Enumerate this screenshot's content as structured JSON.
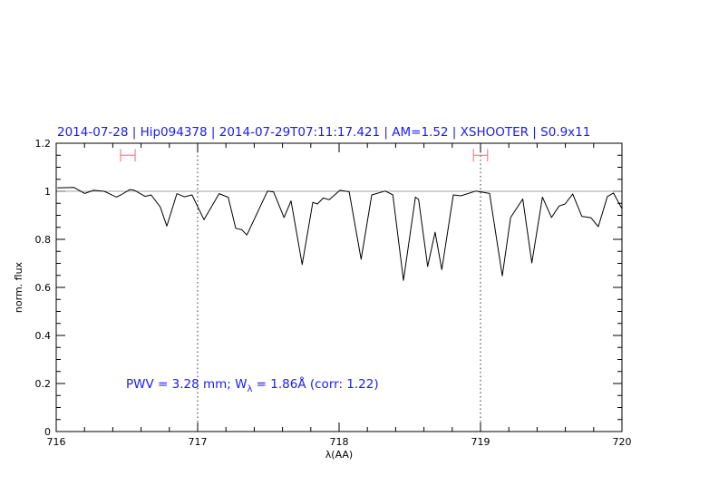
{
  "chart_data": {
    "type": "line",
    "title": "2014-07-28 | Hip094378 | 2014-07-29T07:11:17.421 | AM=1.52 | XSHOOTER | S0.9x11",
    "xlabel": "λ(AA)",
    "ylabel": "norm. flux",
    "xlim": [
      716,
      720
    ],
    "ylim": [
      0,
      1.2
    ],
    "xticks": [
      716,
      717,
      718,
      719,
      720
    ],
    "yticks": [
      0,
      0.2,
      0.4,
      0.6,
      0.8,
      1,
      1.2
    ],
    "ytick_labels": [
      "0",
      "0.2",
      "0.4",
      "0.6",
      "0.8",
      "1",
      "1.2"
    ],
    "grid": false,
    "reference_line_y": 1,
    "vertical_markers": [
      717,
      719
    ],
    "intervals": [
      {
        "x": [
          716.455,
          716.558
        ],
        "y": 1.15
      },
      {
        "x": [
          718.95,
          719.05
        ],
        "y": 1.15
      }
    ],
    "annotation": {
      "prefix": "PWV  =  3.28  mm;  W",
      "sub": "λ",
      "suffix": "  =  1.86Å  (corr:  1.22)"
    },
    "colors": {
      "title": "#1a1aff",
      "line": "#000000",
      "reference": "#e06666",
      "interval": "#f07070"
    },
    "series": [
      {
        "x": [
          716.008,
          716.126,
          716.201,
          716.265,
          716.34,
          716.425,
          716.457,
          716.521,
          716.553,
          716.628,
          716.671,
          716.735,
          716.782,
          716.853,
          716.906,
          716.96,
          717.045,
          717.152,
          717.216,
          717.269,
          717.312,
          717.348,
          717.494,
          717.537,
          717.611,
          717.66,
          717.739,
          717.814,
          717.846,
          717.889,
          717.931,
          718.006,
          718.071,
          718.156,
          718.231,
          718.327,
          718.38,
          718.455,
          718.54,
          718.562,
          718.626,
          718.679,
          718.726,
          718.808,
          718.861,
          718.968,
          719.064,
          719.154,
          719.213,
          719.299,
          719.363,
          719.438,
          719.502,
          719.556,
          719.598,
          719.652,
          719.716,
          719.78,
          719.833,
          719.897,
          719.94,
          720.0
        ],
        "y": [
          1.014,
          1.016,
          0.991,
          1.004,
          1.0,
          0.976,
          0.985,
          1.007,
          1.004,
          0.979,
          0.985,
          0.935,
          0.855,
          0.99,
          0.977,
          0.985,
          0.882,
          0.99,
          0.975,
          0.846,
          0.84,
          0.818,
          1.001,
          0.997,
          0.891,
          0.96,
          0.695,
          0.954,
          0.947,
          0.972,
          0.965,
          1.004,
          0.998,
          0.717,
          0.985,
          1.001,
          0.985,
          0.629,
          0.976,
          0.966,
          0.687,
          0.83,
          0.674,
          0.985,
          0.981,
          1.001,
          0.991,
          0.648,
          0.891,
          0.968,
          0.702,
          0.976,
          0.891,
          0.939,
          0.947,
          0.989,
          0.896,
          0.89,
          0.853,
          0.978,
          0.993,
          0.928
        ]
      }
    ]
  }
}
